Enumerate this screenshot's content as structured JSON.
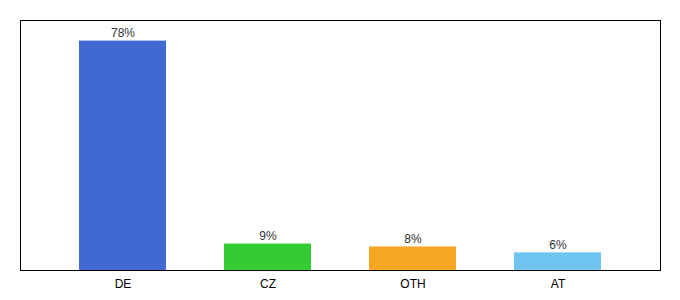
{
  "chart_data": {
    "type": "bar",
    "categories": [
      "DE",
      "CZ",
      "OTH",
      "AT"
    ],
    "values": [
      78,
      9,
      8,
      6
    ],
    "value_labels": [
      "78%",
      "9%",
      "8%",
      "6%"
    ],
    "colors": [
      "#4169d4",
      "#33cc33",
      "#f5a623",
      "#6ec6f0"
    ],
    "ylim": [
      0,
      85
    ],
    "data_labels": true,
    "tick_labels": "x"
  }
}
